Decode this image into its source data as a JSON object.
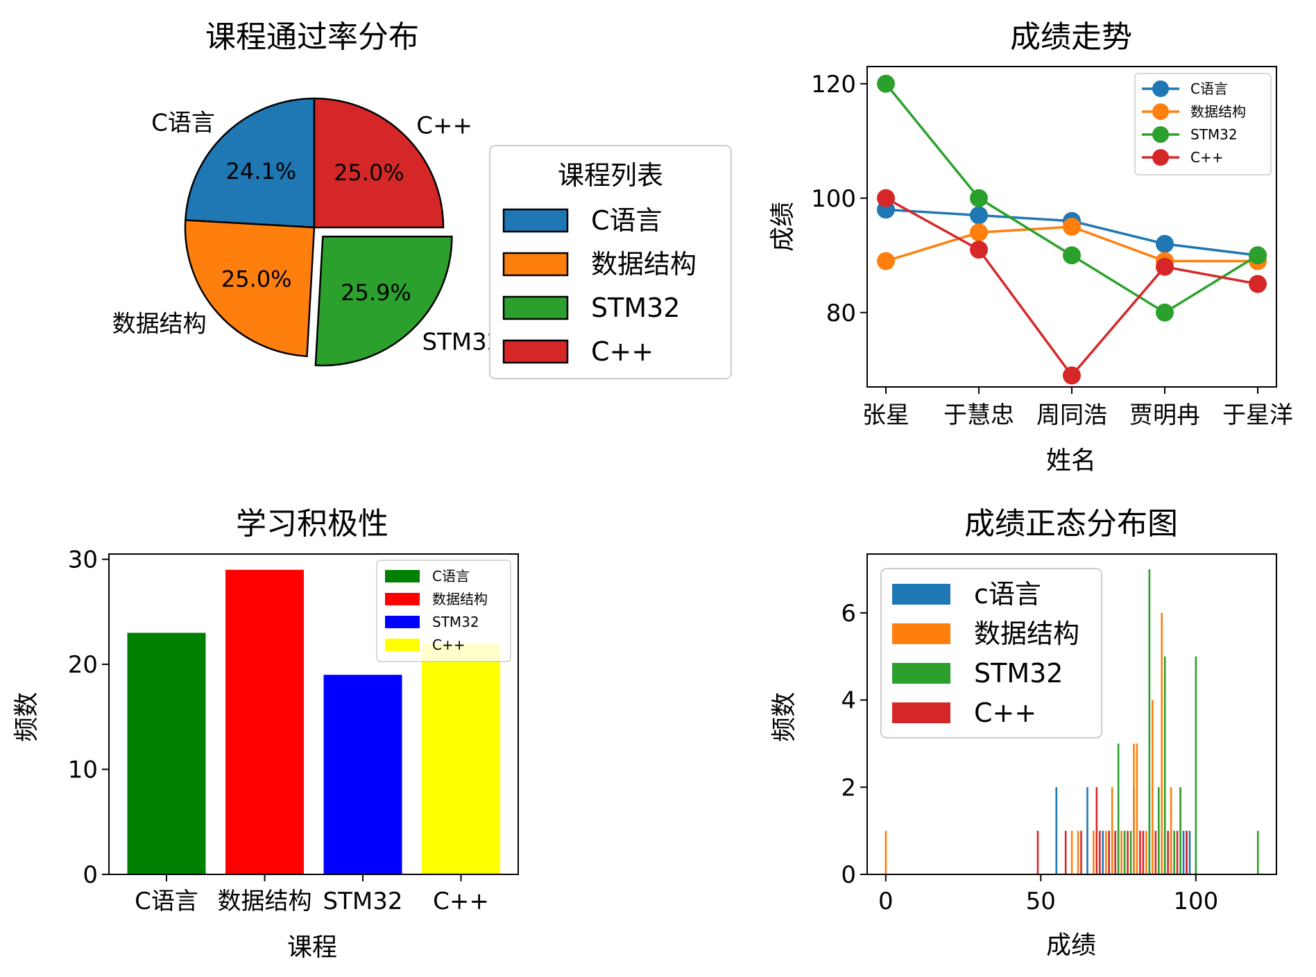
{
  "colors": {
    "blue": "#1f77b4",
    "orange": "#ff7f0e",
    "green": "#2ca02c",
    "red": "#d62728",
    "bar_green": "#008000",
    "bar_red": "#ff0000",
    "bar_blue": "#0000ff",
    "bar_yellow": "#ffff00"
  },
  "chart_data": [
    {
      "type": "pie",
      "title": "课程通过率分布",
      "labels": [
        "C语言",
        "数据结构",
        "STM32",
        "C++"
      ],
      "values": [
        24.1,
        25.0,
        25.9,
        25.0
      ],
      "pct_labels": [
        "24.1%",
        "25.0%",
        "25.9%",
        "25.0%"
      ],
      "colors": [
        "#1f77b4",
        "#ff7f0e",
        "#2ca02c",
        "#d62728"
      ],
      "exploded": "STM32",
      "legend_title": "课程列表",
      "legend_placement": "right"
    },
    {
      "type": "line",
      "title": "成绩走势",
      "xlabel": "姓名",
      "ylabel": "成绩",
      "categories": [
        "张星",
        "于慧忠",
        "周同浩",
        "贾明冉",
        "于星洋"
      ],
      "ylim": [
        67,
        123
      ],
      "yticks": [
        "80",
        "100",
        "120"
      ],
      "series": [
        {
          "name": "C语言",
          "color": "#1f77b4",
          "values": [
            98,
            97,
            96,
            92,
            90
          ]
        },
        {
          "name": "数据结构",
          "color": "#ff7f0e",
          "values": [
            89,
            94,
            95,
            89,
            89
          ]
        },
        {
          "name": "STM32",
          "color": "#2ca02c",
          "values": [
            120,
            100,
            90,
            80,
            90
          ]
        },
        {
          "name": "C++",
          "color": "#d62728",
          "values": [
            100,
            91,
            69,
            88,
            85
          ]
        }
      ],
      "legend_placement": "upper right"
    },
    {
      "type": "bar",
      "title": "学习积极性",
      "xlabel": "课程",
      "ylabel": "频数",
      "categories": [
        "C语言",
        "数据结构",
        "STM32",
        "C++"
      ],
      "values": [
        23,
        29,
        19,
        22
      ],
      "colors": [
        "#008000",
        "#ff0000",
        "#0000ff",
        "#ffff00"
      ],
      "ylim": [
        0,
        30.5
      ],
      "yticks": [
        "0",
        "10",
        "20",
        "30"
      ],
      "legend": [
        "C语言",
        "数据结构",
        "STM32",
        "C++"
      ],
      "legend_placement": "upper right"
    },
    {
      "type": "bar",
      "subtype": "histogram",
      "title": "成绩正态分布图",
      "xlabel": "成绩",
      "ylabel": "频数",
      "xlim": [
        -6,
        126
      ],
      "ylim": [
        0,
        7.35
      ],
      "xticks": [
        "0",
        "50",
        "100"
      ],
      "yticks": [
        "0",
        "2",
        "4",
        "6"
      ],
      "legend": [
        "c语言",
        "数据结构",
        "STM32",
        "C++"
      ],
      "legend_placement": "upper left",
      "series": [
        {
          "name": "c语言",
          "color": "#1f77b4",
          "bins": [
            [
              55,
              2
            ],
            [
              65,
              2
            ],
            [
              70,
              1
            ],
            [
              75,
              1
            ],
            [
              80,
              2
            ],
            [
              85,
              2
            ],
            [
              88,
              1
            ],
            [
              90,
              1
            ],
            [
              92,
              1
            ],
            [
              96,
              1
            ],
            [
              97,
              1
            ],
            [
              98,
              1
            ]
          ]
        },
        {
          "name": "数据结构",
          "color": "#ff7f0e",
          "bins": [
            [
              0,
              1
            ],
            [
              60,
              1
            ],
            [
              62,
              1
            ],
            [
              67,
              1
            ],
            [
              71,
              1
            ],
            [
              73,
              2
            ],
            [
              76,
              1
            ],
            [
              80,
              3
            ],
            [
              81,
              3
            ],
            [
              84,
              1
            ],
            [
              86,
              4
            ],
            [
              89,
              6
            ],
            [
              90,
              4
            ],
            [
              92,
              2
            ],
            [
              95,
              2
            ]
          ]
        },
        {
          "name": "STM32",
          "color": "#2ca02c",
          "bins": [
            [
              72,
              1
            ],
            [
              75,
              3
            ],
            [
              77,
              1
            ],
            [
              79,
              1
            ],
            [
              85,
              7
            ],
            [
              88,
              2
            ],
            [
              90,
              5
            ],
            [
              93,
              1
            ],
            [
              95,
              2
            ],
            [
              100,
              5
            ],
            [
              120,
              1
            ]
          ]
        },
        {
          "name": "C++",
          "color": "#d62728",
          "bins": [
            [
              49,
              1
            ],
            [
              58,
              1
            ],
            [
              63,
              1
            ],
            [
              68,
              2
            ],
            [
              69,
              1
            ],
            [
              72,
              1
            ],
            [
              74,
              1
            ],
            [
              78,
              1
            ],
            [
              82,
              1
            ],
            [
              83,
              1
            ],
            [
              87,
              1
            ],
            [
              91,
              1
            ],
            [
              94,
              1
            ],
            [
              97,
              1
            ]
          ]
        }
      ]
    }
  ]
}
